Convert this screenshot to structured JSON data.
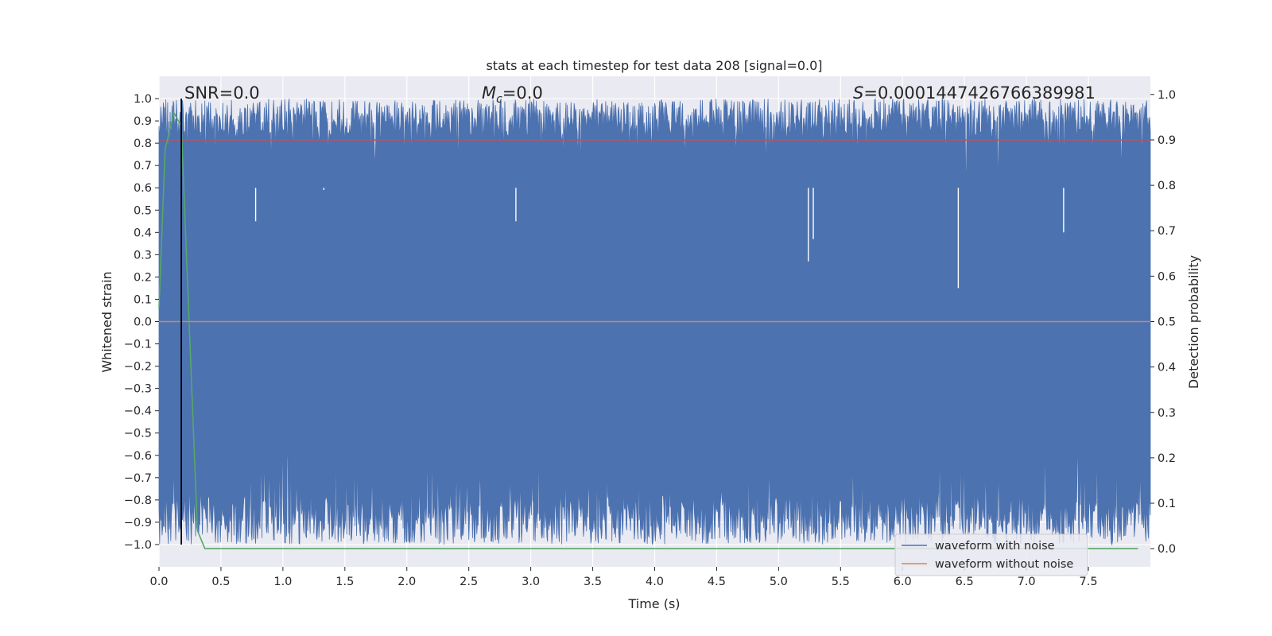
{
  "chart_data": {
    "type": "line",
    "title": "stats at each timestep for test data 208 [signal=0.0]",
    "xlabel": "Time (s)",
    "ylabel_left": "Whitened strain",
    "ylabel_right": "Detection probability",
    "xlim": [
      0.0,
      8.0
    ],
    "ylim_left": [
      -1.1,
      1.1
    ],
    "ylim_right": [
      -0.04,
      1.04
    ],
    "x_ticks": [
      "0.0",
      "0.5",
      "1.0",
      "1.5",
      "2.0",
      "2.5",
      "3.0",
      "3.5",
      "4.0",
      "4.5",
      "5.0",
      "5.5",
      "6.0",
      "6.5",
      "7.0",
      "7.5"
    ],
    "y_ticks_left": [
      "1.0",
      "0.9",
      "0.8",
      "0.7",
      "0.6",
      "0.5",
      "0.4",
      "0.3",
      "0.2",
      "0.1",
      "0.0",
      "−0.1",
      "−0.2",
      "−0.3",
      "−0.4",
      "−0.5",
      "−0.6",
      "−0.7",
      "−0.8",
      "−0.9",
      "−1.0"
    ],
    "y_ticks_right": [
      "1.0",
      "0.9",
      "0.8",
      "0.7",
      "0.6",
      "0.5",
      "0.4",
      "0.3",
      "0.2",
      "0.1",
      "0.0"
    ],
    "grid": true,
    "legend_position": "lower-right",
    "annotations": {
      "snr": "SNR=0.0",
      "mc_symbol": "M",
      "mc_sub": "c",
      "mc_value": "=0.0",
      "s_symbol": "S",
      "s_value": "=0.0001447426766389981"
    },
    "series": [
      {
        "name": "waveform with noise",
        "color": "#4c72b0",
        "description_range": [
          -1.0,
          1.0
        ],
        "note_y": "dense whitened-noise waveform spanning approximately -1.0 to 1.0"
      },
      {
        "name": "waveform without noise",
        "color": "#dd8452",
        "x": [
          0.0,
          8.0
        ],
        "y": [
          0.0,
          0.0
        ]
      },
      {
        "color": "#55a868",
        "axis": "right",
        "x": [
          0.0,
          0.05,
          0.12,
          0.18,
          0.25,
          0.31,
          0.37,
          0.6,
          1.0,
          2.0,
          4.0,
          6.0,
          7.9
        ],
        "y": [
          0.53,
          0.88,
          0.96,
          0.93,
          0.45,
          0.04,
          0.0,
          0.0,
          0.0,
          0.0,
          0.0,
          0.0,
          0.0
        ]
      },
      {
        "color": "#c44e52",
        "axis": "right",
        "x": [
          0.0,
          8.0
        ],
        "y": [
          0.9,
          0.9
        ]
      }
    ],
    "vline": {
      "x": 0.18,
      "color": "#000000"
    }
  }
}
